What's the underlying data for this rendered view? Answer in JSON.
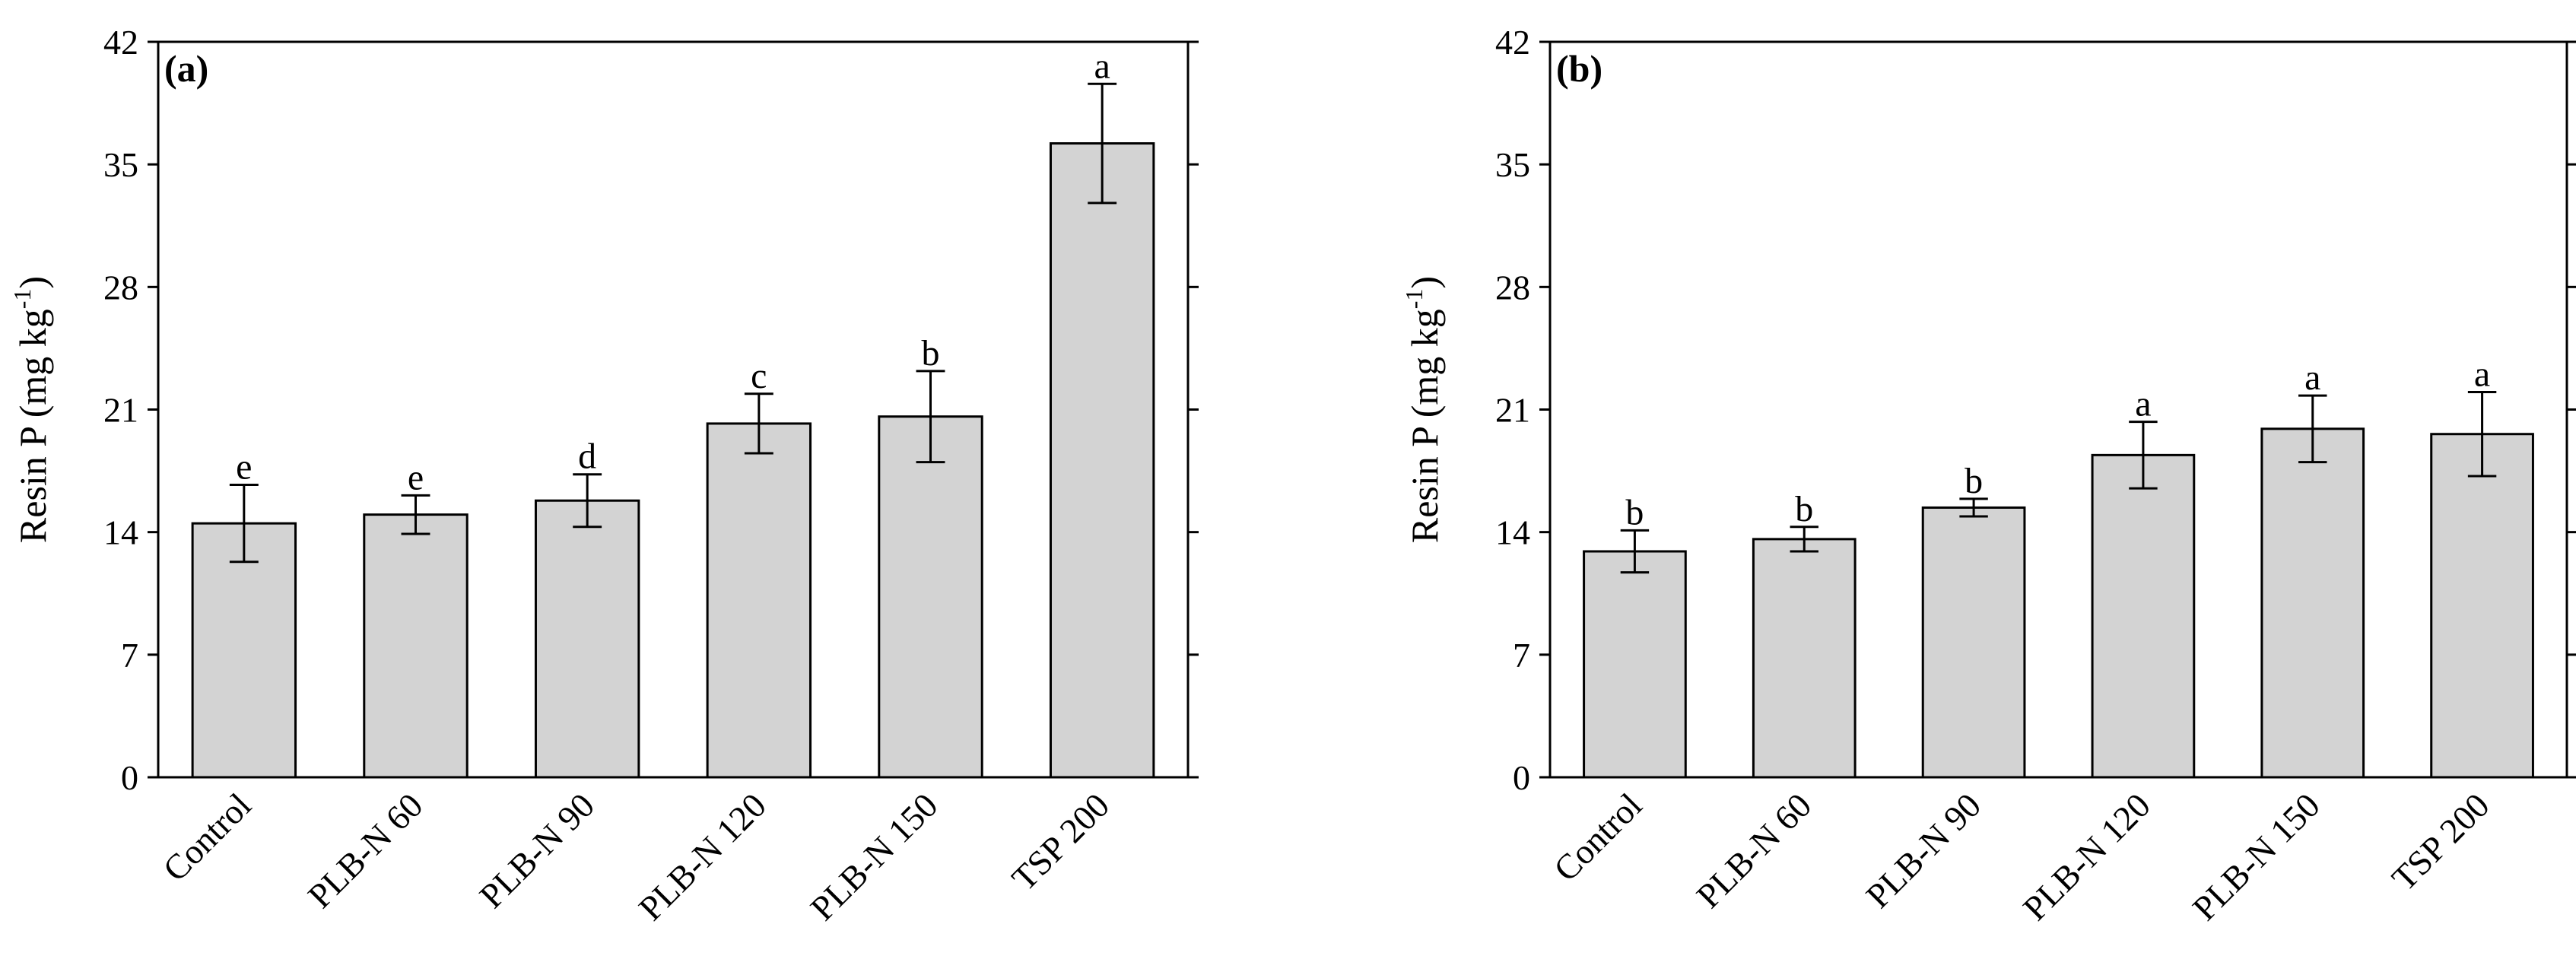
{
  "chart_data": [
    {
      "type": "bar",
      "panel_label": "(a)",
      "categories": [
        "Control",
        "PLB-N 60",
        "PLB-N 90",
        "PLB-N 120",
        "PLB-N 150",
        "TSP 200"
      ],
      "values": [
        14.5,
        15.0,
        15.8,
        20.2,
        20.6,
        36.2
      ],
      "error": [
        2.2,
        1.1,
        1.5,
        1.7,
        2.6,
        3.4
      ],
      "letters": [
        "e",
        "e",
        "d",
        "c",
        "b",
        "a"
      ],
      "ylabel": "Resin P (mg kg",
      "ylabel_sup": "-1",
      "ylabel_close": ")",
      "ylim": [
        0,
        42
      ],
      "yticks": [
        "0",
        "7",
        "14",
        "21",
        "28",
        "35",
        "42"
      ],
      "ytick_values": [
        0,
        7,
        14,
        21,
        28,
        35,
        42
      ]
    },
    {
      "type": "bar",
      "panel_label": "(b)",
      "categories": [
        "Control",
        "PLB-N 60",
        "PLB-N 90",
        "PLB-N 120",
        "PLB-N 150",
        "TSP 200"
      ],
      "values": [
        12.9,
        13.6,
        15.4,
        18.4,
        19.9,
        19.6
      ],
      "error": [
        1.2,
        0.7,
        0.5,
        1.9,
        1.9,
        2.4
      ],
      "letters": [
        "b",
        "b",
        "b",
        "a",
        "a",
        "a"
      ],
      "ylabel": "Resin P (mg kg",
      "ylabel_sup": "-1",
      "ylabel_close": ")",
      "ylim": [
        0,
        42
      ],
      "yticks": [
        "0",
        "7",
        "14",
        "21",
        "28",
        "35",
        "42"
      ],
      "ytick_values": [
        0,
        7,
        14,
        21,
        28,
        35,
        42
      ]
    }
  ]
}
